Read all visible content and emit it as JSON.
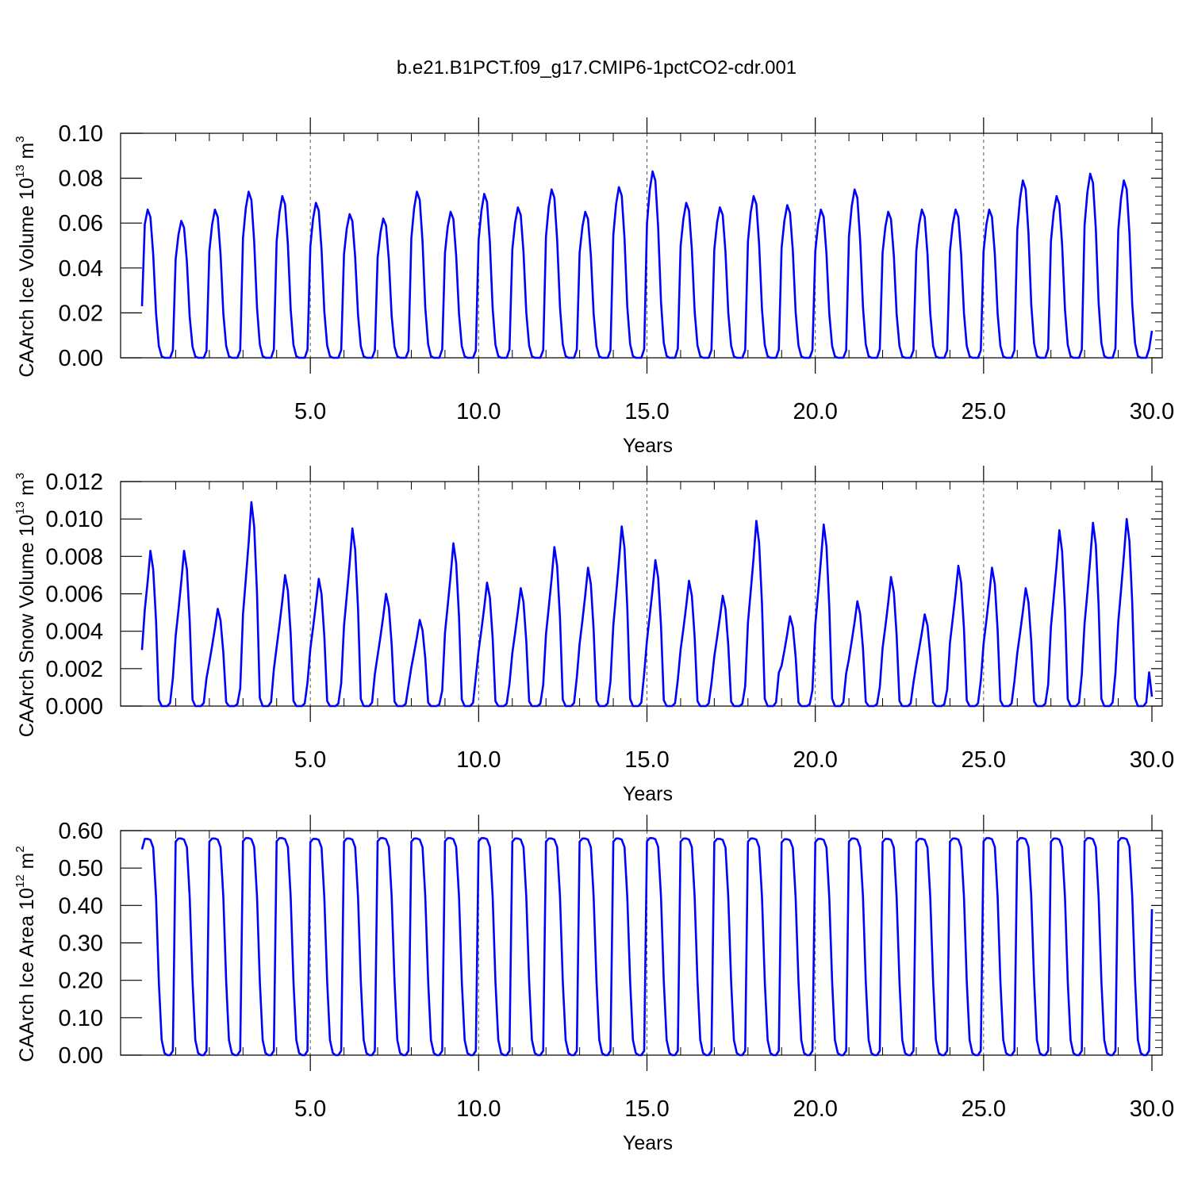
{
  "title": "b.e21.B1PCT.f09_g17.CMIP6-1pctCO2-cdr.001",
  "chart_data": [
    {
      "type": "line",
      "ylabel_main": "CAArch Ice Volume 10",
      "ylabel_exp": "13",
      "ylabel_unit": " m",
      "ylabel_unit_exp": "3",
      "xlabel": "Years",
      "xlim": [
        0,
        30
      ],
      "ylim": [
        0,
        0.1
      ],
      "xticks": [
        5,
        10,
        15,
        20,
        25,
        30
      ],
      "xtick_labels": [
        "5.0",
        "10.0",
        "15.0",
        "20.0",
        "25.0",
        "30.0"
      ],
      "yticks": [
        0,
        0.02,
        0.04,
        0.06,
        0.08,
        0.1
      ],
      "ytick_labels": [
        "0.00",
        "0.02",
        "0.04",
        "0.06",
        "0.08",
        "0.10"
      ],
      "vertical_dashed_lines": [
        5,
        10,
        15,
        20,
        25
      ],
      "line_color": "#0000ff",
      "season": "ice_volume",
      "start_value": 0.023,
      "end_value": 0.012,
      "peaks": [
        0.066,
        0.061,
        0.066,
        0.074,
        0.072,
        0.069,
        0.064,
        0.062,
        0.074,
        0.065,
        0.073,
        0.067,
        0.075,
        0.065,
        0.076,
        0.083,
        0.069,
        0.067,
        0.072,
        0.068,
        0.066,
        0.075,
        0.065,
        0.066,
        0.066,
        0.066,
        0.079,
        0.072,
        0.082,
        0.079
      ]
    },
    {
      "type": "line",
      "ylabel_main": "CAArch Snow Volume 10",
      "ylabel_exp": "13",
      "ylabel_unit": " m",
      "ylabel_unit_exp": "3",
      "xlabel": "Years",
      "xlim": [
        0,
        30
      ],
      "ylim": [
        0,
        0.012
      ],
      "xticks": [
        5,
        10,
        15,
        20,
        25,
        30
      ],
      "xtick_labels": [
        "5.0",
        "10.0",
        "15.0",
        "20.0",
        "25.0",
        "30.0"
      ],
      "yticks": [
        0,
        0.002,
        0.004,
        0.006,
        0.008,
        0.01,
        0.012
      ],
      "ytick_labels": [
        "0.000",
        "0.002",
        "0.004",
        "0.006",
        "0.008",
        "0.010",
        "0.012"
      ],
      "vertical_dashed_lines": [
        5,
        10,
        15,
        20,
        25
      ],
      "line_color": "#0000ff",
      "season": "snow_volume",
      "start_value": 0.003,
      "end_value": 0.0005,
      "peaks": [
        0.0083,
        0.0083,
        0.0052,
        0.0109,
        0.007,
        0.0068,
        0.0095,
        0.006,
        0.0046,
        0.0087,
        0.0066,
        0.0063,
        0.0085,
        0.0074,
        0.0096,
        0.0078,
        0.0067,
        0.0059,
        0.0099,
        0.0048,
        0.0097,
        0.0056,
        0.0069,
        0.0049,
        0.0075,
        0.0074,
        0.0063,
        0.0094,
        0.0098,
        0.01
      ]
    },
    {
      "type": "line",
      "ylabel_main": "CAArch Ice Area 10",
      "ylabel_exp": "12",
      "ylabel_unit": " m",
      "ylabel_unit_exp": "2",
      "xlabel": "Years",
      "xlim": [
        0,
        30
      ],
      "ylim": [
        0,
        0.6
      ],
      "xticks": [
        5,
        10,
        15,
        20,
        25,
        30
      ],
      "xtick_labels": [
        "5.0",
        "10.0",
        "15.0",
        "20.0",
        "25.0",
        "30.0"
      ],
      "yticks": [
        0,
        0.1,
        0.2,
        0.3,
        0.4,
        0.5,
        0.6
      ],
      "ytick_labels": [
        "0.00",
        "0.10",
        "0.20",
        "0.30",
        "0.40",
        "0.50",
        "0.60"
      ],
      "vertical_dashed_lines": [
        5,
        10,
        15,
        20,
        25
      ],
      "line_color": "#0000ff",
      "season": "ice_area",
      "start_value": 0.55,
      "end_value": 0.39,
      "peaks": [
        0.578,
        0.579,
        0.579,
        0.58,
        0.58,
        0.578,
        0.579,
        0.58,
        0.579,
        0.58,
        0.58,
        0.579,
        0.579,
        0.579,
        0.579,
        0.58,
        0.579,
        0.578,
        0.579,
        0.577,
        0.578,
        0.579,
        0.578,
        0.578,
        0.579,
        0.58,
        0.58,
        0.579,
        0.58,
        0.58
      ]
    }
  ]
}
